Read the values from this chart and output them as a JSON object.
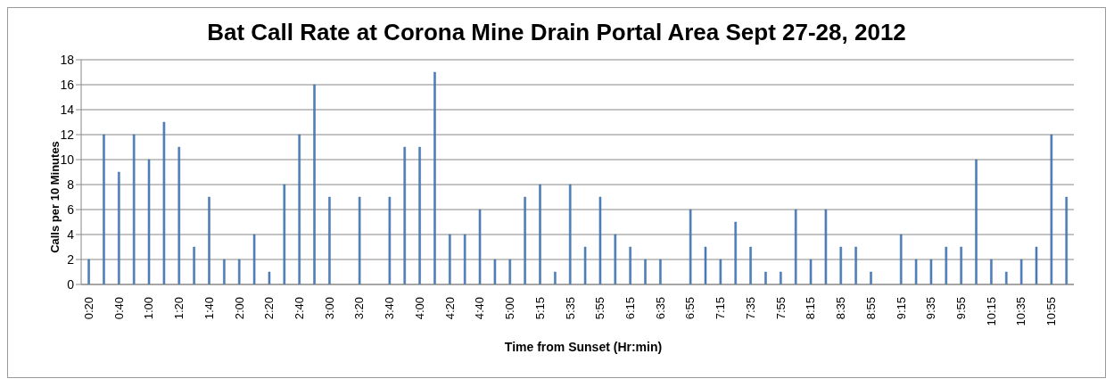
{
  "chart_data": {
    "type": "bar",
    "title": "Bat Call Rate at Corona Mine Drain Portal Area Sept 27-28, 2012",
    "xlabel": "Time from Sunset (Hr:min)",
    "ylabel": "Calls per 10 Minutes",
    "categories": [
      "0:20",
      null,
      "0:40",
      null,
      "1:00",
      null,
      "1:20",
      null,
      "1:40",
      null,
      "2:00",
      null,
      "2:20",
      null,
      "2:40",
      null,
      "3:00",
      null,
      "3:20",
      null,
      "3:40",
      null,
      "4:00",
      null,
      "4:20",
      null,
      "4:40",
      null,
      "5:00",
      null,
      "5:15",
      null,
      "5:35",
      null,
      "5:55",
      null,
      "6:15",
      null,
      "6:35",
      null,
      "6:55",
      null,
      "7:15",
      null,
      "7:35",
      null,
      "7:55",
      null,
      "8:15",
      null,
      "8:35",
      null,
      "8:55",
      null,
      "9:15",
      null,
      "9:35",
      null,
      "9:55",
      null,
      "10:15",
      null,
      "10:35",
      null,
      "10:55",
      null
    ],
    "values": [
      2,
      12,
      9,
      12,
      10,
      13,
      11,
      3,
      7,
      2,
      2,
      4,
      1,
      8,
      12,
      16,
      7,
      0,
      7,
      0,
      7,
      11,
      11,
      17,
      4,
      4,
      6,
      2,
      2,
      7,
      8,
      1,
      8,
      3,
      7,
      4,
      3,
      2,
      2,
      0,
      6,
      3,
      2,
      5,
      3,
      1,
      1,
      6,
      2,
      6,
      3,
      3,
      1,
      0,
      4,
      2,
      2,
      3,
      3,
      10,
      2,
      1,
      2,
      3,
      12,
      7
    ],
    "color": "#4f81bd",
    "ylim": [
      0,
      18
    ],
    "yticks": [
      0,
      2,
      4,
      6,
      8,
      10,
      12,
      14,
      16,
      18
    ],
    "grid": "y"
  }
}
